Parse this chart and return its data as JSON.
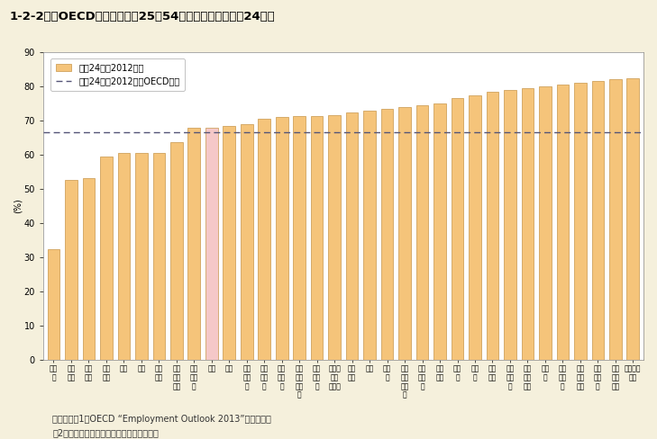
{
  "title": "1-2-2図　OECD諸国の女性（25～54歳）の就業率（平成24年）",
  "ylabel": "(%)",
  "ylim": [
    0,
    90
  ],
  "yticks": [
    0,
    10,
    20,
    30,
    40,
    50,
    60,
    70,
    80,
    90
  ],
  "oecd_avg": 66.5,
  "categories": [
    "トル\nコ",
    "メキ\nシコ",
    "ギリ\nシャ",
    "イタ\nリア",
    "チリ",
    "韓国",
    "スペ\nイン",
    "アイ\nルラ\nンド",
    "ハン\nガリ\nー",
    "日本",
    "米国",
    "スロ\nバキ\nア",
    "ポー\nラン\nド",
    "イス\nラエ\nル",
    "オー\nスト\nラリ\nア",
    "ポル\nトガ\nル",
    "ニュー\nジー\nランド",
    "ベル\nギー",
    "英国",
    "チェ\nコ",
    "ルク\nセン\nブル\nク",
    "エス\nトニ\nア",
    "フラ\nンス",
    "カナ\nダ",
    "ドイ\nツ",
    "オラ\nンダ",
    "デン\nマー\nク",
    "フィ\nンラ\nンド",
    "スイ\nス",
    "スロ\nベニ\nア",
    "オー\nスト\nリア",
    "ノル\nウェ\nー",
    "アイ\nスラ\nンド",
    "スウェー\nデン"
  ],
  "values": [
    32.5,
    52.7,
    53.2,
    59.5,
    60.5,
    60.5,
    60.5,
    63.7,
    67.8,
    68.0,
    68.4,
    69.0,
    70.5,
    71.0,
    71.2,
    71.4,
    71.5,
    72.5,
    73.0,
    73.5,
    74.0,
    74.5,
    75.0,
    76.5,
    77.5,
    78.5,
    79.0,
    79.5,
    80.0,
    80.5,
    81.0,
    81.5,
    82.0,
    82.5
  ],
  "bar_color_normal": "#F5C47A",
  "bar_color_highlight": "#F5C8C8",
  "bar_edge_color": "#C8964A",
  "background_color": "#F5F0DC",
  "plot_bg_color": "#FFFFFF",
  "legend_label_bar": "平成24年（2012年）",
  "legend_label_line": "平成24年（2012年）OECD平均",
  "note1": "（備考）　1．OECD “Employment Outlook 2013”より作成。",
  "note2": "　2．就業率は「就業者数／人口」で計算。",
  "highlight_index": 9,
  "title_bg_color": "#BEB0A0",
  "font_size_title": 9.5,
  "font_size_tick": 7,
  "font_size_xtick": 5.5,
  "font_size_note": 7
}
